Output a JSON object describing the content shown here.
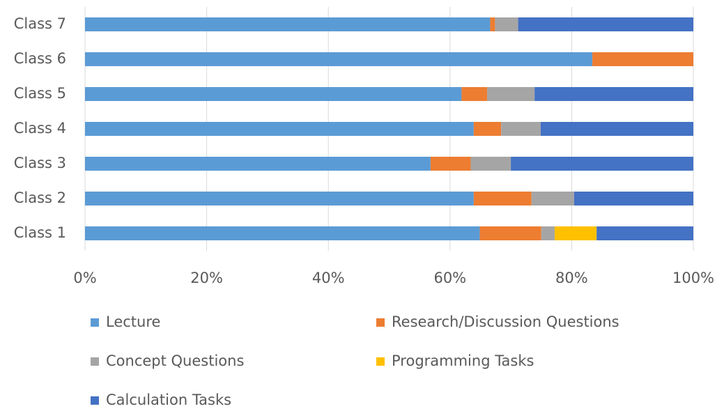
{
  "chart_data": {
    "type": "stacked-bar-horizontal",
    "categories": [
      "Class 1",
      "Class 2",
      "Class 3",
      "Class 4",
      "Class 5",
      "Class 6",
      "Class 7"
    ],
    "series": [
      {
        "name": "Lecture",
        "color": "#5b9bd5",
        "values": [
          64.9,
          63.9,
          56.8,
          63.9,
          61.9,
          83.4,
          66.6
        ]
      },
      {
        "name": "Research/Discussion Questions",
        "color": "#ed7d31",
        "values": [
          10.1,
          9.5,
          6.6,
          4.5,
          4.2,
          16.6,
          0.8
        ]
      },
      {
        "name": "Concept Questions",
        "color": "#a5a5a5",
        "values": [
          2.2,
          7.0,
          6.6,
          6.5,
          7.8,
          0,
          3.8
        ]
      },
      {
        "name": "Programming Tasks",
        "color": "#ffc000",
        "values": [
          6.9,
          0,
          0,
          0,
          0,
          0,
          0
        ]
      },
      {
        "name": "Calculation Tasks",
        "color": "#4472c4",
        "values": [
          15.9,
          19.6,
          30.0,
          25.1,
          26.1,
          0,
          28.8
        ]
      }
    ],
    "xlim": [
      0,
      100
    ],
    "xticks": [
      {
        "value": 0,
        "label": "0%"
      },
      {
        "value": 20,
        "label": "20%"
      },
      {
        "value": 40,
        "label": "40%"
      },
      {
        "value": 60,
        "label": "60%"
      },
      {
        "value": 80,
        "label": "80%"
      },
      {
        "value": 100,
        "label": "100%"
      }
    ],
    "grid": true,
    "legend": "bottom"
  }
}
